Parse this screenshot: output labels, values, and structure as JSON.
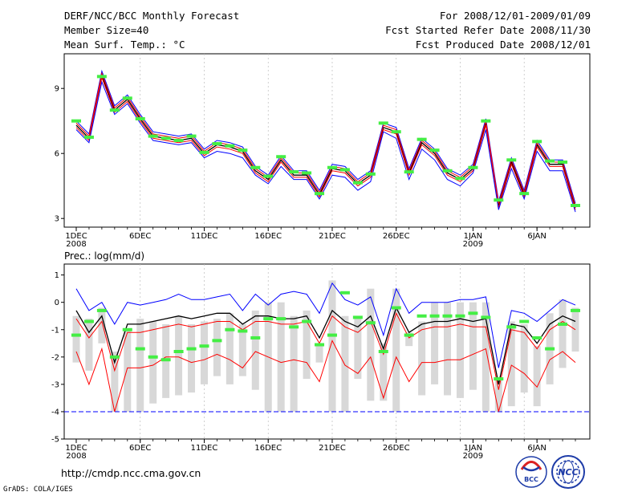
{
  "header": {
    "title": "DERF/NCC/BCC Monthly Forecast",
    "member": "Member Size=40",
    "variable": "Mean Surf. Temp.: °C",
    "period": "For 2008/12/01-2009/01/09",
    "started": "Fcst Started Refer Date 2008/11/30",
    "produced": "Fcst Produced Date 2008/12/01"
  },
  "footer": {
    "url": "http://cmdp.ncc.cma.gov.cn",
    "credit": "GrADS: COLA/IGES",
    "logo_bcc": "BCC",
    "logo_ncc": "NCC"
  },
  "colors": {
    "ensemble_mean": "#000000",
    "outer_bound": "#0000ff",
    "inner_bound": "#ff0000",
    "observed": "#44ee44",
    "spread_bar": "#d8d8d8"
  },
  "chart_data": [
    {
      "type": "line",
      "title": "Mean Surf. Temp.: °C",
      "x_days": 40,
      "x_ticks": [
        {
          "day": 1,
          "label": "1DEC",
          "sub": "2008"
        },
        {
          "day": 6,
          "label": "6DEC",
          "sub": ""
        },
        {
          "day": 11,
          "label": "11DEC",
          "sub": ""
        },
        {
          "day": 16,
          "label": "16DEC",
          "sub": ""
        },
        {
          "day": 21,
          "label": "21DEC",
          "sub": ""
        },
        {
          "day": 26,
          "label": "26DEC",
          "sub": ""
        },
        {
          "day": 32,
          "label": "1JAN",
          "sub": "2009"
        },
        {
          "day": 37,
          "label": "6JAN",
          "sub": ""
        }
      ],
      "ylim": [
        2.6,
        10.6
      ],
      "yticks": [
        3,
        6,
        9
      ],
      "series": [
        {
          "name": "ensemble mean",
          "color": "#000000",
          "values": [
            7.3,
            6.7,
            9.6,
            8.0,
            8.5,
            7.6,
            6.8,
            6.7,
            6.6,
            6.7,
            6.0,
            6.4,
            6.3,
            6.1,
            5.2,
            4.8,
            5.7,
            5.0,
            5.0,
            4.1,
            5.3,
            5.2,
            4.6,
            5.0,
            7.2,
            7.0,
            5.1,
            6.5,
            6.0,
            5.1,
            4.8,
            5.3,
            7.4,
            3.6,
            5.6,
            4.1,
            6.4,
            5.5,
            5.5,
            3.5
          ]
        },
        {
          "name": "upper outer",
          "color": "#0000ff",
          "values": [
            7.5,
            6.9,
            9.8,
            8.2,
            8.7,
            7.8,
            7.0,
            6.9,
            6.8,
            6.9,
            6.2,
            6.6,
            6.5,
            6.3,
            5.4,
            5.0,
            5.9,
            5.2,
            5.2,
            4.3,
            5.5,
            5.4,
            4.8,
            5.2,
            7.4,
            7.2,
            5.3,
            6.7,
            6.2,
            5.3,
            5.0,
            5.5,
            7.6,
            3.8,
            5.8,
            4.3,
            6.6,
            5.7,
            5.7,
            3.7
          ]
        },
        {
          "name": "upper inner",
          "color": "#ff0000",
          "values": [
            7.4,
            6.8,
            9.7,
            8.1,
            8.6,
            7.7,
            6.9,
            6.8,
            6.7,
            6.8,
            6.1,
            6.5,
            6.4,
            6.2,
            5.3,
            4.9,
            5.8,
            5.1,
            5.1,
            4.2,
            5.4,
            5.3,
            4.7,
            5.1,
            7.3,
            7.1,
            5.2,
            6.6,
            6.1,
            5.2,
            4.9,
            5.4,
            7.5,
            3.7,
            5.7,
            4.2,
            6.5,
            5.6,
            5.6,
            3.6
          ]
        },
        {
          "name": "lower inner",
          "color": "#ff0000",
          "values": [
            7.2,
            6.6,
            9.5,
            7.9,
            8.4,
            7.5,
            6.7,
            6.6,
            6.5,
            6.6,
            5.9,
            6.3,
            6.2,
            6.0,
            5.1,
            4.7,
            5.6,
            4.9,
            4.9,
            4.0,
            5.2,
            5.1,
            4.5,
            4.9,
            7.1,
            6.9,
            5.0,
            6.4,
            5.9,
            5.0,
            4.7,
            5.2,
            7.3,
            3.5,
            5.5,
            4.0,
            6.3,
            5.4,
            5.4,
            3.4
          ]
        },
        {
          "name": "lower outer",
          "color": "#0000ff",
          "values": [
            7.1,
            6.5,
            9.3,
            7.8,
            8.3,
            7.4,
            6.6,
            6.5,
            6.4,
            6.5,
            5.8,
            6.1,
            6.0,
            5.8,
            5.0,
            4.6,
            5.4,
            4.8,
            4.8,
            3.9,
            5.0,
            4.9,
            4.3,
            4.7,
            7.0,
            6.7,
            4.8,
            6.2,
            5.7,
            4.8,
            4.5,
            5.1,
            7.1,
            3.4,
            5.3,
            3.9,
            6.1,
            5.2,
            5.2,
            3.3
          ]
        }
      ],
      "observed": [
        7.5,
        6.75,
        9.55,
        8.0,
        8.55,
        7.6,
        6.8,
        6.7,
        6.6,
        6.8,
        6.05,
        6.45,
        6.35,
        6.15,
        5.35,
        4.95,
        5.85,
        5.15,
        5.1,
        4.15,
        5.35,
        5.25,
        4.65,
        5.05,
        7.4,
        7.0,
        5.15,
        6.65,
        6.15,
        5.2,
        4.85,
        5.35,
        7.5,
        3.85,
        5.7,
        4.15,
        6.55,
        5.65,
        5.6,
        3.6
      ]
    },
    {
      "type": "line",
      "title": "Prec.: log(mm/d)",
      "x_days": 40,
      "x_ticks": [
        {
          "day": 1,
          "label": "1DEC",
          "sub": "2008"
        },
        {
          "day": 6,
          "label": "6DEC",
          "sub": ""
        },
        {
          "day": 11,
          "label": "11DEC",
          "sub": ""
        },
        {
          "day": 16,
          "label": "16DEC",
          "sub": ""
        },
        {
          "day": 21,
          "label": "21DEC",
          "sub": ""
        },
        {
          "day": 26,
          "label": "26DEC",
          "sub": ""
        },
        {
          "day": 32,
          "label": "1JAN",
          "sub": "2009"
        },
        {
          "day": 37,
          "label": "6JAN",
          "sub": ""
        }
      ],
      "ylim": [
        -5,
        1.4
      ],
      "yticks": [
        -5,
        -4,
        -3,
        -2,
        -1,
        0,
        1
      ],
      "baseline": -4,
      "series": [
        {
          "name": "upper outer",
          "color": "#0000ff",
          "values": [
            0.5,
            -0.3,
            0.0,
            -0.8,
            0.0,
            -0.1,
            0.0,
            0.1,
            0.3,
            0.1,
            0.1,
            0.2,
            0.3,
            -0.3,
            0.3,
            -0.1,
            0.3,
            0.4,
            0.3,
            -0.4,
            0.7,
            0.1,
            -0.1,
            0.2,
            -1.2,
            0.5,
            -0.4,
            0.0,
            0.0,
            0.0,
            0.1,
            0.1,
            0.2,
            -2.4,
            -0.3,
            -0.4,
            -0.7,
            -0.3,
            0.1,
            -0.1
          ]
        },
        {
          "name": "ensemble mean",
          "color": "#000000",
          "values": [
            -0.3,
            -1.1,
            -0.5,
            -2.2,
            -0.8,
            -0.8,
            -0.7,
            -0.6,
            -0.5,
            -0.6,
            -0.5,
            -0.4,
            -0.4,
            -0.8,
            -0.5,
            -0.5,
            -0.6,
            -0.6,
            -0.5,
            -1.3,
            -0.3,
            -0.7,
            -0.9,
            -0.5,
            -1.7,
            -0.2,
            -1.1,
            -0.8,
            -0.7,
            -0.7,
            -0.6,
            -0.7,
            -0.6,
            -3.0,
            -0.8,
            -0.9,
            -1.5,
            -0.8,
            -0.5,
            -0.7
          ]
        },
        {
          "name": "upper inner",
          "color": "#ff0000",
          "values": [
            -0.6,
            -1.3,
            -0.7,
            -2.5,
            -1.1,
            -1.1,
            -1.0,
            -0.9,
            -0.8,
            -0.9,
            -0.8,
            -0.7,
            -0.7,
            -1.0,
            -0.7,
            -0.7,
            -0.8,
            -0.8,
            -0.7,
            -1.5,
            -0.5,
            -0.9,
            -1.1,
            -0.7,
            -1.9,
            -0.4,
            -1.3,
            -1.0,
            -0.9,
            -0.9,
            -0.8,
            -0.9,
            -0.9,
            -3.2,
            -1.0,
            -1.1,
            -1.7,
            -1.0,
            -0.7,
            -1.0
          ]
        },
        {
          "name": "lower inner",
          "color": "#ff0000",
          "values": [
            -1.8,
            -3.0,
            -1.7,
            -4.0,
            -2.4,
            -2.4,
            -2.3,
            -2.0,
            -2.0,
            -2.2,
            -2.1,
            -1.9,
            -2.1,
            -2.4,
            -1.8,
            -2.0,
            -2.2,
            -2.1,
            -2.2,
            -2.9,
            -1.4,
            -2.3,
            -2.6,
            -2.0,
            -3.5,
            -2.0,
            -2.9,
            -2.2,
            -2.2,
            -2.1,
            -2.1,
            -1.9,
            -1.7,
            -4.0,
            -2.3,
            -2.6,
            -3.1,
            -2.1,
            -1.8,
            -2.2
          ]
        },
        {
          "name": "lower outer",
          "color": "#0000ff",
          "values": [
            -4.0,
            -4.0,
            -4.0,
            -4.0,
            -4.0,
            -4.0,
            -4.0,
            -4.0,
            -4.0,
            -4.0,
            -4.0,
            -4.0,
            -4.0,
            -4.0,
            -4.0,
            -4.0,
            -4.0,
            -4.0,
            -4.0,
            -4.0,
            -4.0,
            -4.0,
            -4.0,
            -4.0,
            -4.0,
            -4.0,
            -4.0,
            -4.0,
            -4.0,
            -4.0,
            -4.0,
            -4.0,
            -4.0,
            -4.0,
            -4.0,
            -4.0,
            -4.0,
            -4.0,
            -4.0,
            -4.0
          ]
        }
      ],
      "spread_bars": [
        [
          -2.2,
          -0.5
        ],
        [
          -2.5,
          -0.6
        ],
        [
          -1.5,
          -0.2
        ],
        [
          -4.0,
          -1.8
        ],
        [
          -4.0,
          -1.0
        ],
        [
          -4.0,
          -0.6
        ],
        [
          -3.7,
          -0.7
        ],
        [
          -3.5,
          -0.8
        ],
        [
          -3.4,
          -0.5
        ],
        [
          -3.3,
          -0.8
        ],
        [
          -3.0,
          -0.7
        ],
        [
          -2.7,
          -0.6
        ],
        [
          -3.0,
          -0.4
        ],
        [
          -2.7,
          -0.8
        ],
        [
          -3.2,
          -0.3
        ],
        [
          -4.0,
          0.0
        ],
        [
          -4.0,
          0.0
        ],
        [
          -4.0,
          -0.5
        ],
        [
          -2.8,
          -0.3
        ],
        [
          -2.2,
          -1.5
        ],
        [
          -4.0,
          0.8
        ],
        [
          -4.0,
          -0.5
        ],
        [
          -2.8,
          -0.6
        ],
        [
          -3.6,
          0.5
        ],
        [
          -3.6,
          -1.5
        ],
        [
          -4.0,
          0.5
        ],
        [
          -1.6,
          -1.1
        ],
        [
          -3.4,
          -0.7
        ],
        [
          -3.0,
          0.0
        ],
        [
          -3.4,
          0.0
        ],
        [
          -3.5,
          0.0
        ],
        [
          -3.2,
          0.0
        ],
        [
          -4.0,
          0.0
        ],
        [
          -4.0,
          -2.8
        ],
        [
          -3.8,
          -0.7
        ],
        [
          -3.3,
          -0.8
        ],
        [
          -3.8,
          -1.6
        ],
        [
          -3.0,
          -0.4
        ],
        [
          -2.4,
          0.1
        ],
        [
          -1.8,
          -0.2
        ]
      ],
      "observed": [
        -1.2,
        -0.7,
        -0.3,
        -2.0,
        -1.0,
        -1.7,
        -2.0,
        -2.1,
        -1.8,
        -1.7,
        -1.6,
        -1.4,
        -1.0,
        -1.05,
        -1.3,
        -0.6,
        -0.6,
        -0.9,
        -0.7,
        -1.55,
        -1.2,
        0.35,
        -0.55,
        -0.75,
        -1.8,
        -0.2,
        -1.2,
        -0.5,
        -0.5,
        -0.5,
        -0.5,
        -0.4,
        -0.55,
        -2.8,
        -0.9,
        -0.7,
        -1.3,
        -1.7,
        -0.8,
        -0.3
      ]
    }
  ]
}
